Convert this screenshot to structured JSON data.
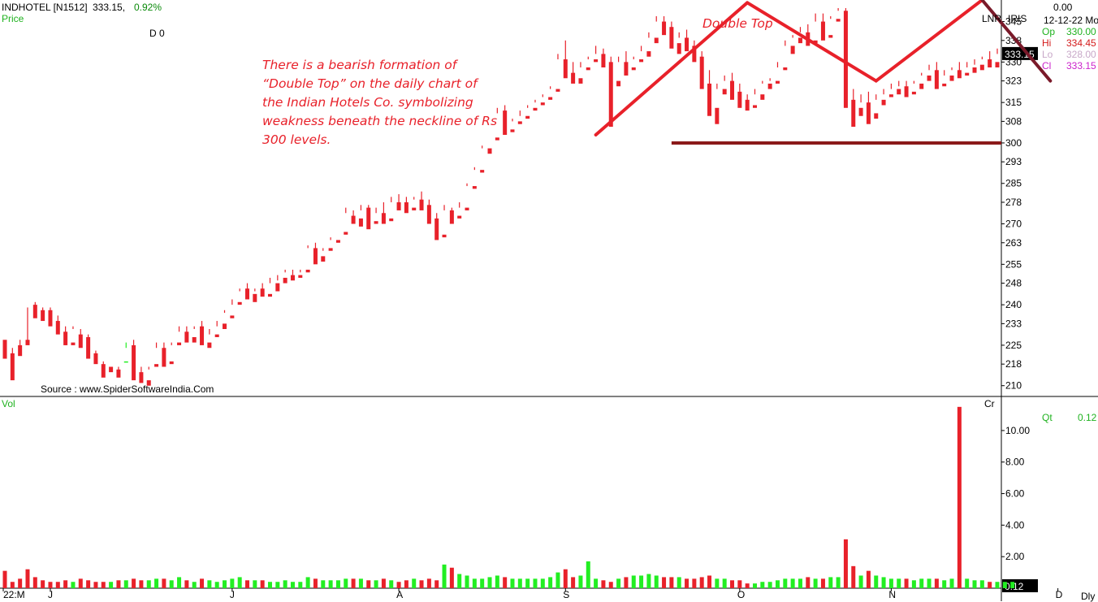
{
  "header": {
    "symbol": "INDHOTEL [N1512]",
    "price": "333.15,",
    "change": "0.92%",
    "price_label": "Price",
    "d_label": "D 0",
    "lnr": "LNR",
    "iris": "IRIS",
    "top_value": "0.00",
    "date": "12-12-22 Mo"
  },
  "ohlc": {
    "op_label": "Op",
    "op_value": "330.00",
    "hi_label": "Hi",
    "hi_value": "334.45",
    "lo_label": "Lo",
    "lo_value": "328.00",
    "cl_label": "Cl",
    "cl_value": "333.15"
  },
  "annotation": {
    "title": "Double Top",
    "lines": [
      "There is a bearish formation of",
      "“Double Top” on the daily chart of",
      "the Indian Hotels Co. symbolizing",
      "weakness beneath the neckline of Rs",
      "300 levels."
    ]
  },
  "source": "Source : www.SpiderSoftwareIndia.Com",
  "volume_panel": {
    "label": "Vol",
    "cr_label": "Cr",
    "qt_label": "Qt",
    "qt_value": "0.12",
    "last_value": "0.12"
  },
  "colors": {
    "up": "#22ee22",
    "down": "#e8212a",
    "pattern": "#e8212a",
    "neckline": "#8b1a1a",
    "text_red": "#e8212a"
  },
  "chart_data": {
    "type": "candlestick",
    "price_axis_ticks": [
      210,
      218,
      225,
      233,
      240,
      248,
      255,
      263,
      270,
      278,
      285,
      293,
      300,
      308,
      315,
      323,
      330,
      338,
      345
    ],
    "price_range": [
      206,
      353
    ],
    "last_price_tag": "333.15",
    "volume_axis_ticks": [
      "2.00",
      "4.00",
      "6.00",
      "8.00",
      "10.00"
    ],
    "volume_range": [
      0,
      11.8
    ],
    "x_labels": [
      "22:M",
      "J",
      "J",
      "A",
      "S",
      "O",
      "N",
      "D"
    ],
    "x_label_index": [
      0,
      6,
      30,
      52,
      74,
      97,
      117,
      139
    ],
    "candles": [
      [
        227,
        226,
        222,
        220
      ],
      [
        222,
        224,
        217,
        212
      ],
      [
        225,
        227,
        223,
        221
      ],
      [
        227,
        239,
        226,
        225
      ],
      [
        240,
        241,
        236,
        235
      ],
      [
        238,
        239,
        235,
        234
      ],
      [
        238,
        239,
        234,
        232
      ],
      [
        234,
        236,
        230,
        229
      ],
      [
        230,
        232,
        225,
        225
      ],
      [
        226,
        232,
        231,
        225
      ],
      [
        229,
        231,
        226,
        224
      ],
      [
        228,
        229,
        222,
        220
      ],
      [
        222,
        223,
        220,
        218
      ],
      [
        218,
        219,
        216,
        213
      ],
      [
        217,
        218,
        218,
        215
      ],
      [
        216,
        217,
        214,
        213
      ],
      [
        219,
        226,
        224,
        219
      ],
      [
        225,
        227,
        215,
        212
      ],
      [
        215,
        217,
        213,
        211
      ],
      [
        212,
        217,
        216,
        210
      ],
      [
        218,
        226,
        224,
        217
      ],
      [
        224,
        226,
        219,
        217
      ],
      [
        219,
        226,
        225,
        218
      ],
      [
        226,
        232,
        230,
        225
      ],
      [
        230,
        232,
        227,
        226
      ],
      [
        228,
        232,
        231,
        226
      ],
      [
        232,
        234,
        226,
        225
      ],
      [
        226,
        231,
        229,
        224
      ],
      [
        229,
        234,
        232,
        228
      ],
      [
        233,
        238,
        237,
        231
      ],
      [
        236,
        242,
        240,
        235
      ],
      [
        241,
        246,
        245,
        240
      ],
      [
        246,
        248,
        244,
        242
      ],
      [
        244,
        246,
        245,
        241
      ],
      [
        246,
        248,
        244,
        243
      ],
      [
        244,
        250,
        248,
        243
      ],
      [
        248,
        251,
        249,
        245
      ],
      [
        250,
        253,
        252,
        248
      ],
      [
        251,
        253,
        251,
        249
      ],
      [
        251,
        253,
        252,
        250
      ],
      [
        253,
        262,
        261,
        252
      ],
      [
        261,
        263,
        257,
        255
      ],
      [
        258,
        261,
        260,
        256
      ],
      [
        261,
        265,
        264,
        260
      ],
      [
        264,
        267,
        267,
        263
      ],
      [
        267,
        276,
        274,
        266
      ],
      [
        273,
        275,
        271,
        270
      ],
      [
        272,
        277,
        275,
        269
      ],
      [
        276,
        277,
        270,
        268
      ],
      [
        271,
        276,
        274,
        270
      ],
      [
        274,
        278,
        272,
        270
      ],
      [
        272,
        280,
        278,
        271
      ],
      [
        278,
        281,
        277,
        275
      ],
      [
        278,
        280,
        276,
        274
      ],
      [
        276,
        280,
        279,
        275
      ],
      [
        279,
        282,
        278,
        275
      ],
      [
        277,
        279,
        272,
        270
      ],
      [
        272,
        274,
        266,
        264
      ],
      [
        266,
        277,
        275,
        265
      ],
      [
        275,
        276,
        272,
        270
      ],
      [
        273,
        278,
        276,
        272
      ],
      [
        276,
        285,
        284,
        275
      ],
      [
        284,
        291,
        290,
        283
      ],
      [
        290,
        299,
        298,
        289
      ],
      [
        298,
        302,
        302,
        296
      ],
      [
        302,
        313,
        311,
        301
      ],
      [
        312,
        314,
        305,
        303
      ],
      [
        305,
        309,
        308,
        304
      ],
      [
        308,
        312,
        310,
        307
      ],
      [
        310,
        314,
        313,
        309
      ],
      [
        313,
        316,
        315,
        312
      ],
      [
        315,
        318,
        317,
        314
      ],
      [
        317,
        321,
        320,
        316
      ],
      [
        320,
        333,
        331,
        319
      ],
      [
        331,
        338,
        326,
        324
      ],
      [
        326,
        330,
        325,
        322
      ],
      [
        324,
        330,
        328,
        322
      ],
      [
        328,
        332,
        331,
        327
      ],
      [
        331,
        336,
        333,
        330
      ],
      [
        333,
        335,
        331,
        328
      ],
      [
        330,
        332,
        323,
        306
      ],
      [
        323,
        332,
        330,
        321
      ],
      [
        330,
        334,
        328,
        325
      ],
      [
        328,
        332,
        331,
        327
      ],
      [
        331,
        336,
        334,
        330
      ],
      [
        334,
        341,
        339,
        332
      ],
      [
        339,
        347,
        345,
        337
      ],
      [
        345,
        347,
        343,
        340
      ],
      [
        343,
        345,
        337,
        335
      ],
      [
        337,
        341,
        339,
        333
      ],
      [
        339,
        342,
        336,
        334
      ],
      [
        336,
        338,
        332,
        330
      ],
      [
        332,
        334,
        322,
        320
      ],
      [
        322,
        327,
        313,
        310
      ],
      [
        313,
        322,
        320,
        307
      ],
      [
        320,
        325,
        323,
        318
      ],
      [
        323,
        326,
        319,
        316
      ],
      [
        319,
        322,
        316,
        313
      ],
      [
        316,
        318,
        314,
        312
      ],
      [
        314,
        320,
        318,
        313
      ],
      [
        318,
        323,
        322,
        316
      ],
      [
        322,
        324,
        323,
        320
      ],
      [
        323,
        330,
        328,
        322
      ],
      [
        328,
        338,
        336,
        327
      ],
      [
        336,
        340,
        339,
        333
      ],
      [
        339,
        343,
        341,
        337
      ],
      [
        341,
        344,
        338,
        336
      ],
      [
        338,
        348,
        345,
        337
      ],
      [
        345,
        348,
        340,
        338
      ],
      [
        340,
        347,
        346,
        339
      ],
      [
        346,
        350,
        349,
        345
      ],
      [
        349,
        350,
        316,
        313
      ],
      [
        316,
        320,
        313,
        306
      ],
      [
        313,
        318,
        315,
        310
      ],
      [
        315,
        319,
        311,
        307
      ],
      [
        311,
        318,
        316,
        309
      ],
      [
        316,
        320,
        318,
        314
      ],
      [
        318,
        322,
        320,
        317
      ],
      [
        320,
        323,
        321,
        318
      ],
      [
        321,
        323,
        319,
        317
      ],
      [
        319,
        323,
        322,
        318
      ],
      [
        322,
        326,
        325,
        320
      ],
      [
        325,
        329,
        327,
        323
      ],
      [
        327,
        330,
        322,
        320
      ],
      [
        322,
        327,
        325,
        321
      ],
      [
        325,
        328,
        327,
        323
      ],
      [
        327,
        330,
        326,
        324
      ],
      [
        326,
        330,
        328,
        325
      ],
      [
        328,
        331,
        329,
        326
      ],
      [
        329,
        332,
        331,
        327
      ],
      [
        331,
        334,
        330,
        328
      ],
      [
        330,
        335,
        333,
        328
      ]
    ],
    "volumes": [
      1.1,
      0.4,
      0.6,
      1.2,
      0.7,
      0.5,
      0.4,
      0.4,
      0.5,
      0.4,
      0.6,
      0.5,
      0.4,
      0.4,
      0.4,
      0.5,
      0.5,
      0.6,
      0.5,
      0.5,
      0.6,
      0.6,
      0.5,
      0.7,
      0.5,
      0.4,
      0.6,
      0.5,
      0.4,
      0.5,
      0.6,
      0.7,
      0.5,
      0.5,
      0.5,
      0.4,
      0.4,
      0.5,
      0.4,
      0.4,
      0.7,
      0.6,
      0.5,
      0.5,
      0.5,
      0.6,
      0.6,
      0.6,
      0.5,
      0.5,
      0.6,
      0.5,
      0.4,
      0.5,
      0.6,
      0.5,
      0.6,
      0.5,
      1.5,
      1.3,
      0.9,
      0.8,
      0.6,
      0.6,
      0.7,
      0.8,
      0.7,
      0.6,
      0.6,
      0.6,
      0.6,
      0.6,
      0.7,
      1.0,
      1.2,
      0.7,
      0.8,
      1.7,
      0.6,
      0.5,
      0.4,
      0.6,
      0.7,
      0.8,
      0.8,
      0.9,
      0.8,
      0.7,
      0.7,
      0.7,
      0.6,
      0.6,
      0.7,
      0.8,
      0.6,
      0.6,
      0.5,
      0.5,
      0.3,
      0.3,
      0.4,
      0.4,
      0.5,
      0.6,
      0.6,
      0.6,
      0.7,
      0.6,
      0.6,
      0.7,
      0.7,
      3.1,
      1.4,
      0.8,
      1.1,
      0.8,
      0.7,
      0.6,
      0.6,
      0.6,
      0.5,
      0.6,
      0.6,
      0.6,
      0.5,
      0.6,
      11.5,
      0.6,
      0.5,
      0.5,
      0.4,
      0.4,
      0.4,
      0.4
    ],
    "pattern_line": [
      [
        78,
        303
      ],
      [
        98,
        352
      ],
      [
        115,
        323
      ],
      [
        129,
        353
      ],
      [
        138,
        323
      ]
    ],
    "neckline": {
      "price": 300,
      "from_index": 88
    }
  }
}
